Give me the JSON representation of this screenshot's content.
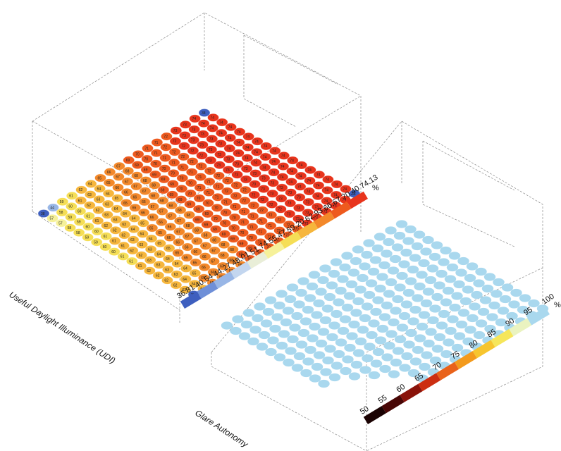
{
  "titles": {
    "udi": "Useful Daylight Illuminance (UDI)",
    "glare": "Glare Autonomy"
  },
  "udi_legend": {
    "unit": "%",
    "ticks": [
      "74.13",
      "70.40",
      "66.67",
      "62.93",
      "59.20",
      "55.47",
      "51.74",
      "48.01",
      "44.27",
      "40.54",
      "36.81"
    ],
    "colors": [
      "#e8341c",
      "#ee5a1e",
      "#f3882a",
      "#f6b63c",
      "#f5de56",
      "#f6f19a",
      "#e9eed8",
      "#c3d6ef",
      "#98b6e6",
      "#6e8fd8",
      "#3e5fbf"
    ]
  },
  "glare_legend": {
    "unit": "%",
    "ticks": [
      "100",
      "95",
      "90",
      "85",
      "80",
      "75",
      "70",
      "65",
      "60",
      "55",
      "50"
    ],
    "colors": [
      "#a9d8ee",
      "#eaf3c0",
      "#f6e65a",
      "#f7c52e",
      "#f39a1c",
      "#e9621a",
      "#cc2f12",
      "#8a130a",
      "#480605",
      "#1a0202"
    ]
  },
  "udi_grid": {
    "rows": 18,
    "cols": 18,
    "min": 36.81,
    "max": 74.13
  },
  "glare_grid": {
    "rows": 17,
    "cols": 17,
    "value": 100,
    "color": "#a9d8ee"
  }
}
